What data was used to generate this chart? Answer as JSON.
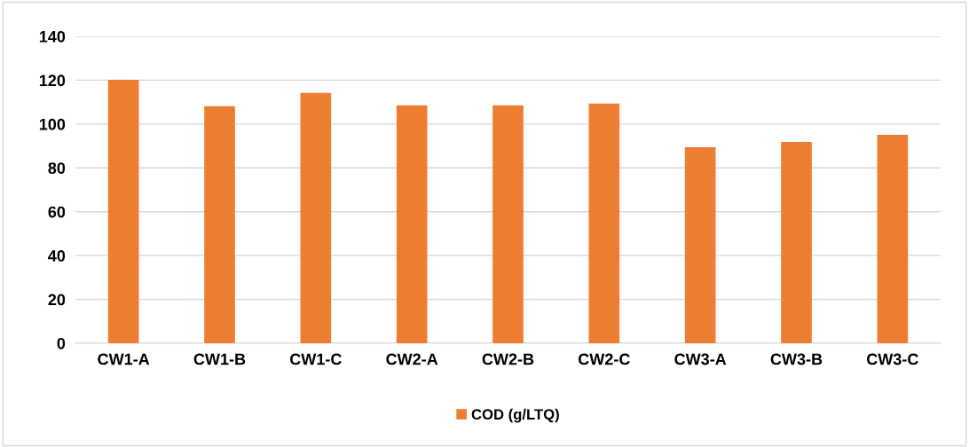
{
  "chart_data": {
    "type": "bar",
    "categories": [
      "CW1-A",
      "CW1-B",
      "CW1-C",
      "CW2-A",
      "CW2-B",
      "CW2-C",
      "CW3-A",
      "CW3-B",
      "CW3-C"
    ],
    "series": [
      {
        "name": "COD (g/LTQ)",
        "color": "#ed7d31",
        "values": [
          120.2,
          108.1,
          114.2,
          108.5,
          108.5,
          109.3,
          89.4,
          91.9,
          95.1
        ]
      }
    ],
    "ylim": [
      0,
      140
    ],
    "yticks": [
      0,
      20,
      40,
      60,
      80,
      100,
      120,
      140
    ],
    "grid": "y",
    "legend": "bottom"
  }
}
